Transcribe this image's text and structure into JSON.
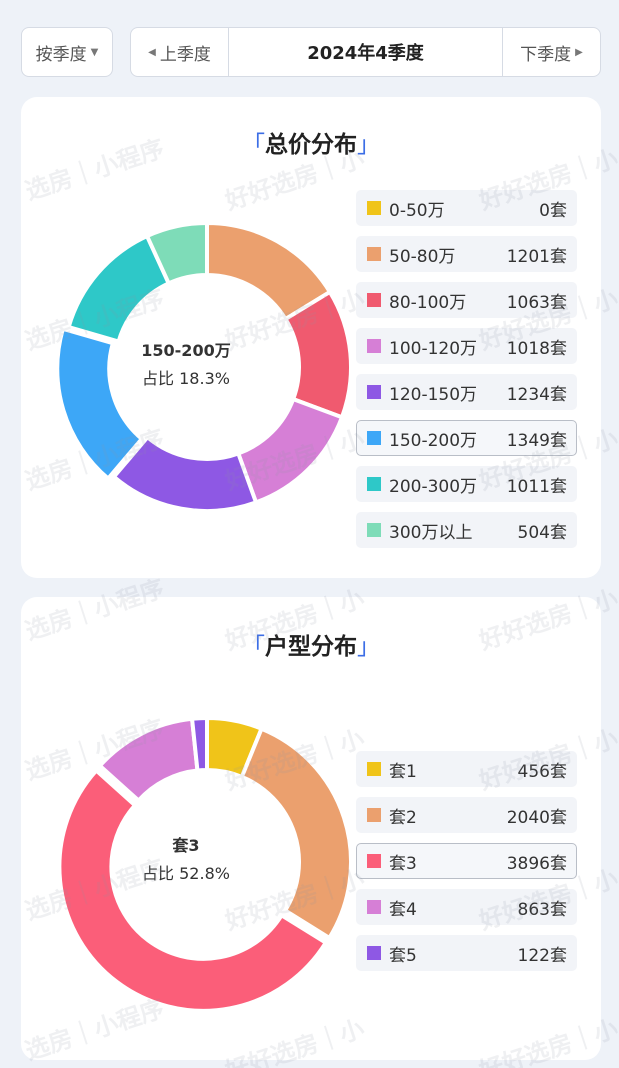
{
  "toolbar": {
    "mode_label": "按季度",
    "prev_label": "上季度",
    "current_label": "2024年4季度",
    "next_label": "下季度"
  },
  "watermark": {
    "text_a": "选房｜小程序",
    "text_b": "好好选房｜小"
  },
  "price_card": {
    "title_open": "「",
    "title": "总价分布",
    "title_close": "」",
    "center_name": "150-200万",
    "center_ratio": "占比 18.3%"
  },
  "layout_card": {
    "title_open": "「",
    "title": "户型分布",
    "title_close": "」",
    "center_name": "套3",
    "center_ratio": "占比 52.8%"
  },
  "chart_data": [
    {
      "type": "pie",
      "title": "总价分布",
      "highlighted": "150-200万",
      "categories": [
        "0-50万",
        "50-80万",
        "80-100万",
        "100-120万",
        "120-150万",
        "150-200万",
        "200-300万",
        "300万以上"
      ],
      "values": [
        0,
        1201,
        1063,
        1018,
        1234,
        1349,
        1011,
        504
      ],
      "value_labels": [
        "0套",
        "1201套",
        "1063套",
        "1018套",
        "1234套",
        "1349套",
        "1011套",
        "504套"
      ],
      "colors": [
        "#f0c419",
        "#eba06e",
        "#f05a6f",
        "#d67fd6",
        "#8e58e4",
        "#3da7f7",
        "#2ec8c8",
        "#7edcb8"
      ],
      "legend": "right"
    },
    {
      "type": "pie",
      "title": "户型分布",
      "highlighted": "套3",
      "categories": [
        "套1",
        "套2",
        "套3",
        "套4",
        "套5"
      ],
      "values": [
        456,
        2040,
        3896,
        863,
        122
      ],
      "value_labels": [
        "456套",
        "2040套",
        "3896套",
        "863套",
        "122套"
      ],
      "colors": [
        "#f0c419",
        "#eba06e",
        "#fb5e79",
        "#d67fd6",
        "#8e58e4"
      ],
      "legend": "right"
    }
  ]
}
